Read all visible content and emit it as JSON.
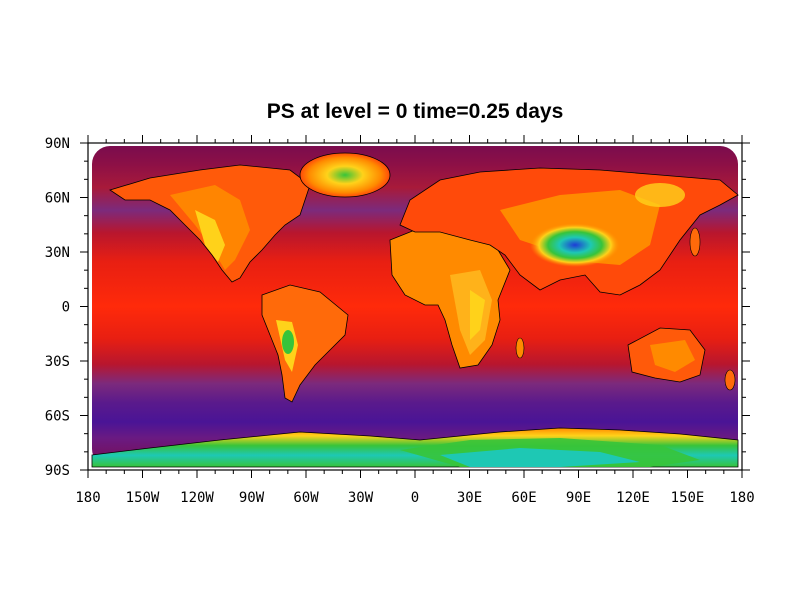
{
  "title": "PS at level = 0 time=0.25 days",
  "map": {
    "projection": "cylindrical-equidistant",
    "variable": "PS",
    "lon_range": [
      -180,
      180
    ],
    "lat_range": [
      -90,
      90
    ],
    "x_ticks": [
      {
        "value": -180,
        "label": "180"
      },
      {
        "value": -150,
        "label": "150W"
      },
      {
        "value": -120,
        "label": "120W"
      },
      {
        "value": -90,
        "label": "90W"
      },
      {
        "value": -60,
        "label": "60W"
      },
      {
        "value": -30,
        "label": "30W"
      },
      {
        "value": 0,
        "label": "0"
      },
      {
        "value": 30,
        "label": "30E"
      },
      {
        "value": 60,
        "label": "60E"
      },
      {
        "value": 90,
        "label": "90E"
      },
      {
        "value": 120,
        "label": "120E"
      },
      {
        "value": 150,
        "label": "150E"
      },
      {
        "value": 180,
        "label": "180"
      }
    ],
    "y_ticks": [
      {
        "value": 90,
        "label": "90N"
      },
      {
        "value": 60,
        "label": "60N"
      },
      {
        "value": 30,
        "label": "30N"
      },
      {
        "value": 0,
        "label": "0"
      },
      {
        "value": -30,
        "label": "30S"
      },
      {
        "value": -60,
        "label": "60S"
      },
      {
        "value": -90,
        "label": "90S"
      }
    ],
    "colors": {
      "high": "#7a0c4e",
      "ocean_mid": "#e01a1a",
      "ocean_polar": "#5a1a8c",
      "land_low": "#ff8a00",
      "land_mid": "#ffd21a",
      "land_high": "#37c43a",
      "land_peak": "#1e3bd6"
    }
  }
}
